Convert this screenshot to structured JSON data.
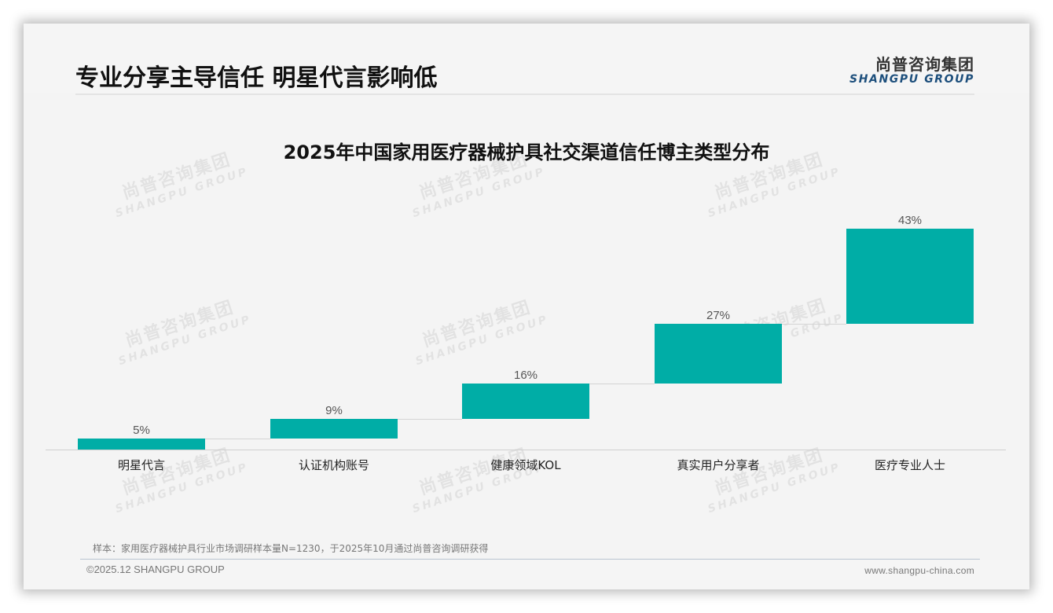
{
  "header": {
    "title": "专业分享主导信任 明星代言影响低",
    "logo_cn": "尚普咨询集团",
    "logo_en": "SHANGPU GROUP"
  },
  "watermark": {
    "cn": "尚普咨询集团",
    "en": "SHANGPU GROUP"
  },
  "chart_data": {
    "type": "bar",
    "subtype": "waterfall",
    "title": "2025年中国家用医疗器械护具社交渠道信任博主类型分布",
    "categories": [
      "明星代言",
      "认证机构账号",
      "健康领域KOL",
      "真实用户分享者",
      "医疗专业人士"
    ],
    "values": [
      5,
      9,
      16,
      27,
      43
    ],
    "value_labels": [
      "5%",
      "9%",
      "16%",
      "27%",
      "43%"
    ],
    "cumulative_start": [
      0,
      5,
      14,
      30,
      57
    ],
    "cumulative_end": [
      5,
      14,
      30,
      57,
      100
    ],
    "unit": "%",
    "xlabel": "",
    "ylabel": "",
    "ylim": [
      0,
      100
    ],
    "grid": false,
    "legend": "none",
    "bar_color": "#00ada6",
    "connectors": true
  },
  "footer": {
    "source_note": "样本：家用医疗器械护具行业市场调研样本量N=1230，于2025年10月通过尚普咨询调研获得",
    "copyright": "©2025.12 SHANGPU GROUP",
    "website": "www.shangpu-china.com"
  }
}
